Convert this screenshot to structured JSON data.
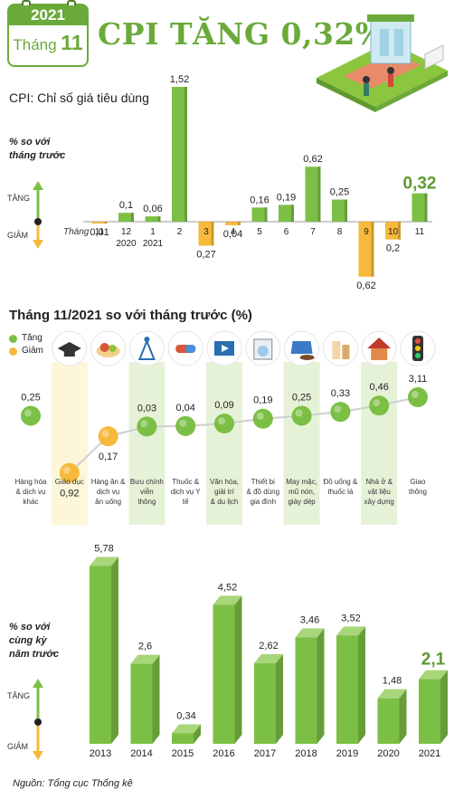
{
  "header": {
    "year": "2021",
    "month_prefix": "Tháng",
    "month_num": "11",
    "title": "CPI TĂNG 0,32%"
  },
  "cpi_definition": "CPI: Chỉ số giá tiêu dùng",
  "arrow": {
    "up": "TĂNG",
    "down": "GIẢM"
  },
  "source": "Nguồn: Tổng cục Thống kê",
  "colors": {
    "green": "#7cbf45",
    "green_dark": "#5e9a30",
    "orange": "#f6b93b",
    "highlight": "#fdf7d9",
    "green_band": "#e6f2d8"
  },
  "chart_data": [
    {
      "type": "bar",
      "unit_label": [
        "% so với",
        "tháng trước"
      ],
      "month_axis_label": "Tháng",
      "categories": [
        "11",
        "12",
        "1",
        "2",
        "3",
        "4",
        "5",
        "6",
        "7",
        "8",
        "9",
        "10",
        "11"
      ],
      "year_labels": [
        "",
        "2020",
        "2021",
        "",
        "",
        "",
        "",
        "",
        "",
        "",
        "",
        "",
        ""
      ],
      "values": [
        -0.01,
        0.1,
        0.06,
        1.52,
        -0.27,
        -0.04,
        0.16,
        0.19,
        0.62,
        0.25,
        -0.62,
        -0.2,
        0.32
      ],
      "value_labels": [
        "0,01",
        "0,1",
        "0,06",
        "1,52",
        "0,27",
        "0,04",
        "0,16",
        "0,19",
        "0,62",
        "0,25",
        "0,62",
        "0,2",
        "0,32"
      ]
    },
    {
      "type": "scatter",
      "title": "Tháng 11/2021 so với tháng trước (%)",
      "legend": [
        {
          "label": "Tăng",
          "color": "#7cbf45"
        },
        {
          "label": "Giảm",
          "color": "#f6b93b"
        }
      ],
      "points": [
        {
          "group": "Hàng hóa & dịch vụ khác",
          "value": 0.25,
          "label": "0,25",
          "icon": "none"
        },
        {
          "group": "Giáo dục",
          "value": -0.92,
          "label": "0,92",
          "icon": "graduation-cap-icon"
        },
        {
          "group": "Hàng ăn & dịch vụ ăn uống",
          "value": -0.17,
          "label": "0,17",
          "icon": "food-icon"
        },
        {
          "group": "Bưu chính viễn thông",
          "value": 0.03,
          "label": "0,03",
          "icon": "antenna-icon"
        },
        {
          "group": "Thuốc & dịch vụ Y tế",
          "value": 0.04,
          "label": "0,04",
          "icon": "medicine-icon"
        },
        {
          "group": "Văn hóa, giải trí & du lịch",
          "value": 0.09,
          "label": "0,09",
          "icon": "film-icon"
        },
        {
          "group": "Thiết bị & đồ dùng gia đình",
          "value": 0.19,
          "label": "0,19",
          "icon": "washing-machine-icon"
        },
        {
          "group": "May mặc, mũ nón, giày dép",
          "value": 0.25,
          "label": "0,25",
          "icon": "clothing-icon"
        },
        {
          "group": "Đồ uống & thuốc lá",
          "value": 0.33,
          "label": "0,33",
          "icon": "drinks-icon"
        },
        {
          "group": "Nhà ở & vật liệu xây dựng",
          "value": 0.46,
          "label": "0,46",
          "icon": "house-icon"
        },
        {
          "group": "Giao thông",
          "value": 3.11,
          "label": "3,11",
          "icon": "traffic-light-icon"
        }
      ]
    },
    {
      "type": "bar",
      "unit_label": [
        "% so với",
        "cùng kỳ",
        "năm trước"
      ],
      "categories": [
        "2013",
        "2014",
        "2015",
        "2016",
        "2017",
        "2018",
        "2019",
        "2020",
        "2021"
      ],
      "values": [
        5.78,
        2.6,
        0.34,
        4.52,
        2.62,
        3.46,
        3.52,
        1.48,
        2.1
      ],
      "value_labels": [
        "5,78",
        "2,6",
        "0,34",
        "4,52",
        "2,62",
        "3,46",
        "3,52",
        "1,48",
        "2,1"
      ]
    }
  ]
}
